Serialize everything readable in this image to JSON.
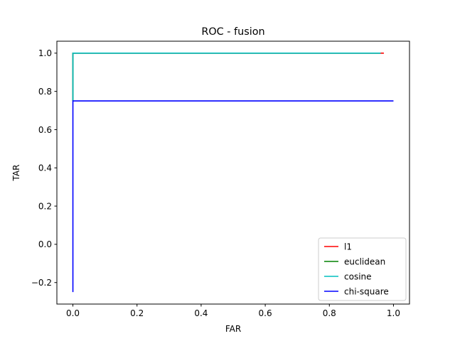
{
  "chart_data": {
    "type": "line",
    "title": "ROC - fusion",
    "xlabel": "FAR",
    "ylabel": "TAR",
    "xlim": [
      -0.05,
      1.05
    ],
    "ylim": [
      -0.3125,
      1.0625
    ],
    "xticks": [
      0.0,
      0.2,
      0.4,
      0.6,
      0.8,
      1.0
    ],
    "xtick_labels": [
      "0.0",
      "0.2",
      "0.4",
      "0.6",
      "0.8",
      "1.0"
    ],
    "yticks": [
      -0.2,
      0.0,
      0.2,
      0.4,
      0.6,
      0.8,
      1.0
    ],
    "ytick_labels": [
      "−0.2",
      "0.0",
      "0.2",
      "0.4",
      "0.6",
      "0.8",
      "1.0"
    ],
    "grid": false,
    "legend_position": "lower-right",
    "series": [
      {
        "name": "l1",
        "color": "#ff0000",
        "x": [
          0.0,
          0.0,
          0.97
        ],
        "y": [
          0.75,
          1.0,
          1.0
        ]
      },
      {
        "name": "euclidean",
        "color": "#008000",
        "x": [
          0.0,
          0.0,
          0.96
        ],
        "y": [
          0.75,
          1.0,
          1.0
        ]
      },
      {
        "name": "cosine",
        "color": "#00bfbf",
        "x": [
          0.0,
          0.0,
          0.96
        ],
        "y": [
          0.75,
          1.0,
          1.0
        ]
      },
      {
        "name": "chi-square",
        "color": "#0000ff",
        "x": [
          0.0,
          0.0,
          1.0
        ],
        "y": [
          -0.25,
          0.75,
          0.75
        ]
      }
    ]
  }
}
